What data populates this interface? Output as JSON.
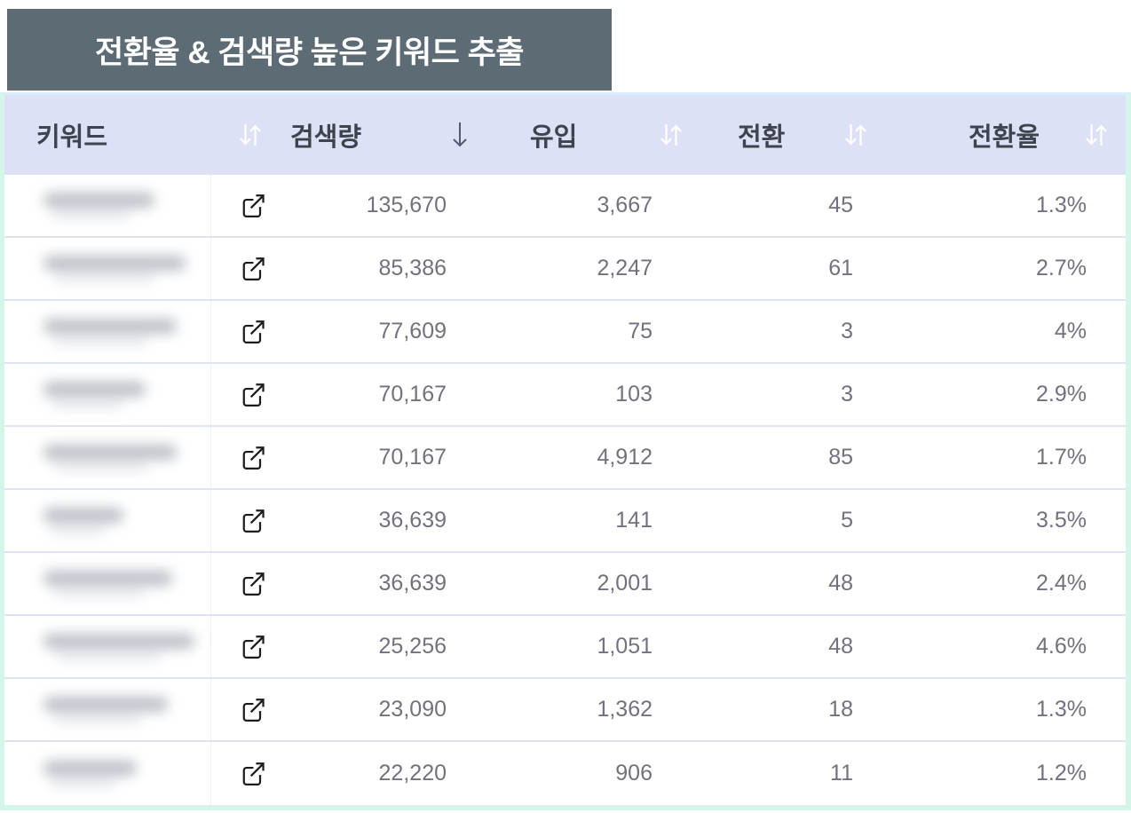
{
  "banner": {
    "title": "전환율 & 검색량 높은 키워드 추출"
  },
  "table": {
    "columns": [
      {
        "key": "keyword",
        "label": "키워드",
        "sort": "inactive"
      },
      {
        "key": "search_volume",
        "label": "검색량",
        "sort": "desc"
      },
      {
        "key": "inflow",
        "label": "유입",
        "sort": "inactive"
      },
      {
        "key": "conversion",
        "label": "전환",
        "sort": "inactive"
      },
      {
        "key": "conversion_rate",
        "label": "전환율",
        "sort": "inactive"
      }
    ],
    "rows": [
      {
        "keyword_redacted": true,
        "redacted_width": 125,
        "search_volume": "135,670",
        "inflow": "3,667",
        "conversion": "45",
        "conversion_rate": "1.3%"
      },
      {
        "keyword_redacted": true,
        "redacted_width": 160,
        "search_volume": "85,386",
        "inflow": "2,247",
        "conversion": "61",
        "conversion_rate": "2.7%"
      },
      {
        "keyword_redacted": true,
        "redacted_width": 150,
        "search_volume": "77,609",
        "inflow": "75",
        "conversion": "3",
        "conversion_rate": "4%"
      },
      {
        "keyword_redacted": true,
        "redacted_width": 115,
        "search_volume": "70,167",
        "inflow": "103",
        "conversion": "3",
        "conversion_rate": "2.9%"
      },
      {
        "keyword_redacted": true,
        "redacted_width": 150,
        "search_volume": "70,167",
        "inflow": "4,912",
        "conversion": "85",
        "conversion_rate": "1.7%"
      },
      {
        "keyword_redacted": true,
        "redacted_width": 90,
        "search_volume": "36,639",
        "inflow": "141",
        "conversion": "5",
        "conversion_rate": "3.5%"
      },
      {
        "keyword_redacted": true,
        "redacted_width": 145,
        "search_volume": "36,639",
        "inflow": "2,001",
        "conversion": "48",
        "conversion_rate": "2.4%"
      },
      {
        "keyword_redacted": true,
        "redacted_width": 170,
        "search_volume": "25,256",
        "inflow": "1,051",
        "conversion": "48",
        "conversion_rate": "4.6%"
      },
      {
        "keyword_redacted": true,
        "redacted_width": 140,
        "search_volume": "23,090",
        "inflow": "1,362",
        "conversion": "18",
        "conversion_rate": "1.3%"
      },
      {
        "keyword_redacted": true,
        "redacted_width": 105,
        "search_volume": "22,220",
        "inflow": "906",
        "conversion": "11",
        "conversion_rate": "1.2%"
      }
    ]
  },
  "icons": {
    "external_link": "external-link-icon",
    "sort_both": "sort-updown-icon",
    "sort_desc_active": "sort-down-icon"
  },
  "colors": {
    "banner_bg": "#5d6c74",
    "banner_text": "#ffffff",
    "header_bg": "#dce1f6",
    "header_text": "#3e434e",
    "row_border": "#dfe3f6",
    "outer_border_mint": "#d3f6e8",
    "outer_border_top_blue": "#d9edfb",
    "number_text": "#72727e",
    "active_sort_arrow": "#4e5b73",
    "inactive_sort_arrow": "#ffffff",
    "link_icon": "#1c1c1c"
  }
}
